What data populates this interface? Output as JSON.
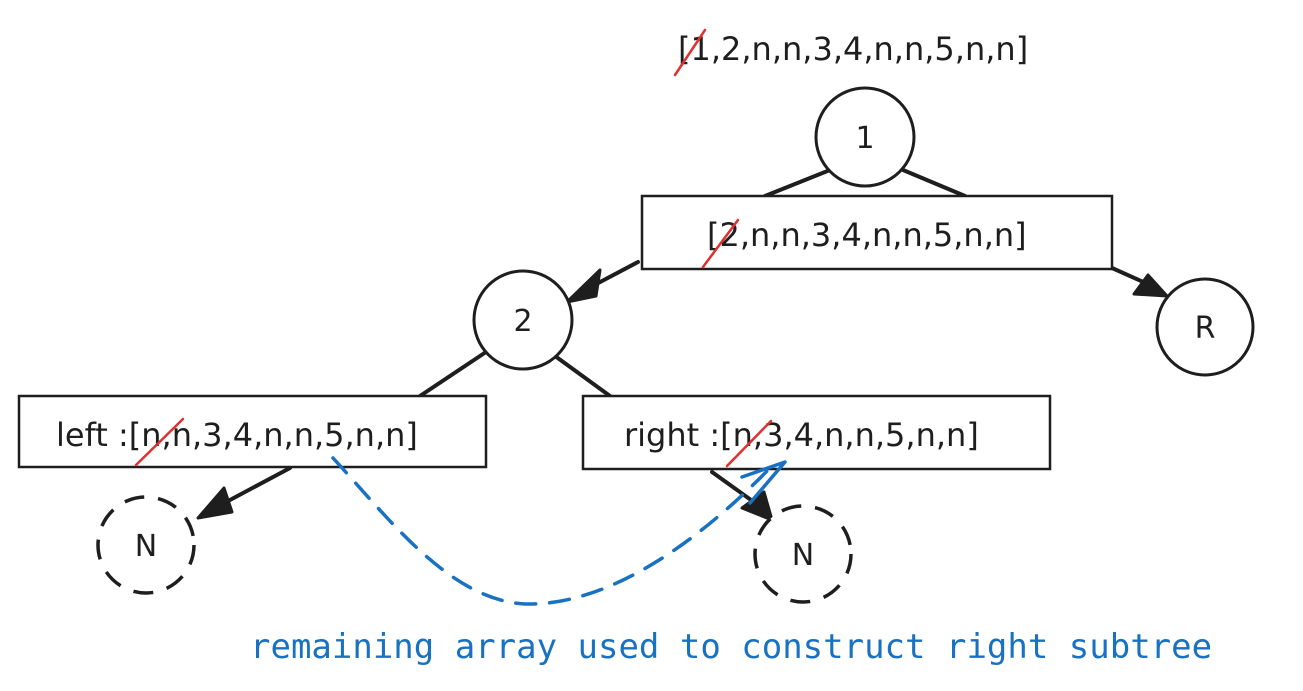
{
  "top_array": {
    "struck": "[1",
    "rest": ",2,n,n,3,4,n,n,5,n,n]"
  },
  "root_node": {
    "label": "1"
  },
  "middle_box": {
    "struck": "[2",
    "rest": ",n,n,3,4,n,n,5,n,n]"
  },
  "node_2": {
    "label": "2"
  },
  "node_r": {
    "label": "R"
  },
  "left_box": {
    "prefix": "left :",
    "struck": "[n",
    "rest": ",n,3,4,n,n,5,n,n]"
  },
  "right_box": {
    "prefix": "right :",
    "struck": "[n",
    "rest": ",3,4,n,n,5,n,n]"
  },
  "null_left": {
    "label": "N"
  },
  "null_right": {
    "label": "N"
  },
  "annotation": "remaining array used to construct right subtree",
  "colors": {
    "ink": "#1e1e1e",
    "strike": "#e03131",
    "annotation": "#1971c2"
  }
}
